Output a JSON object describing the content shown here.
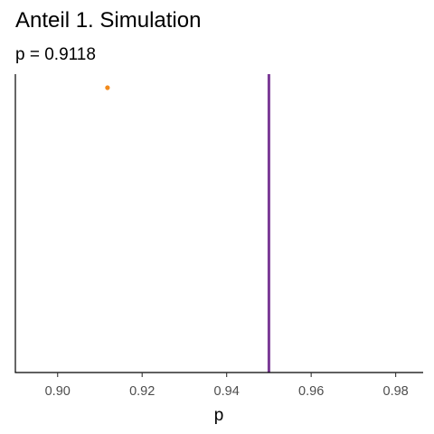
{
  "chart_data": {
    "type": "scatter",
    "title": "Anteil 1. Simulation",
    "subtitle": "p = 0.9118",
    "xlabel": "p",
    "ylabel": "",
    "xlim": [
      0.89,
      0.9865
    ],
    "x_ticks": [
      0.9,
      0.92,
      0.94,
      0.96,
      0.98
    ],
    "x_tick_labels": [
      "0.90",
      "0.92",
      "0.94",
      "0.96",
      "0.98"
    ],
    "points": [
      {
        "x": 0.9118,
        "y": 1,
        "color": "#F28A1B"
      }
    ],
    "reference_lines": [
      {
        "orientation": "vertical",
        "x": 0.95,
        "color": "#7B3A96"
      }
    ],
    "grid": false,
    "legend": "none"
  }
}
